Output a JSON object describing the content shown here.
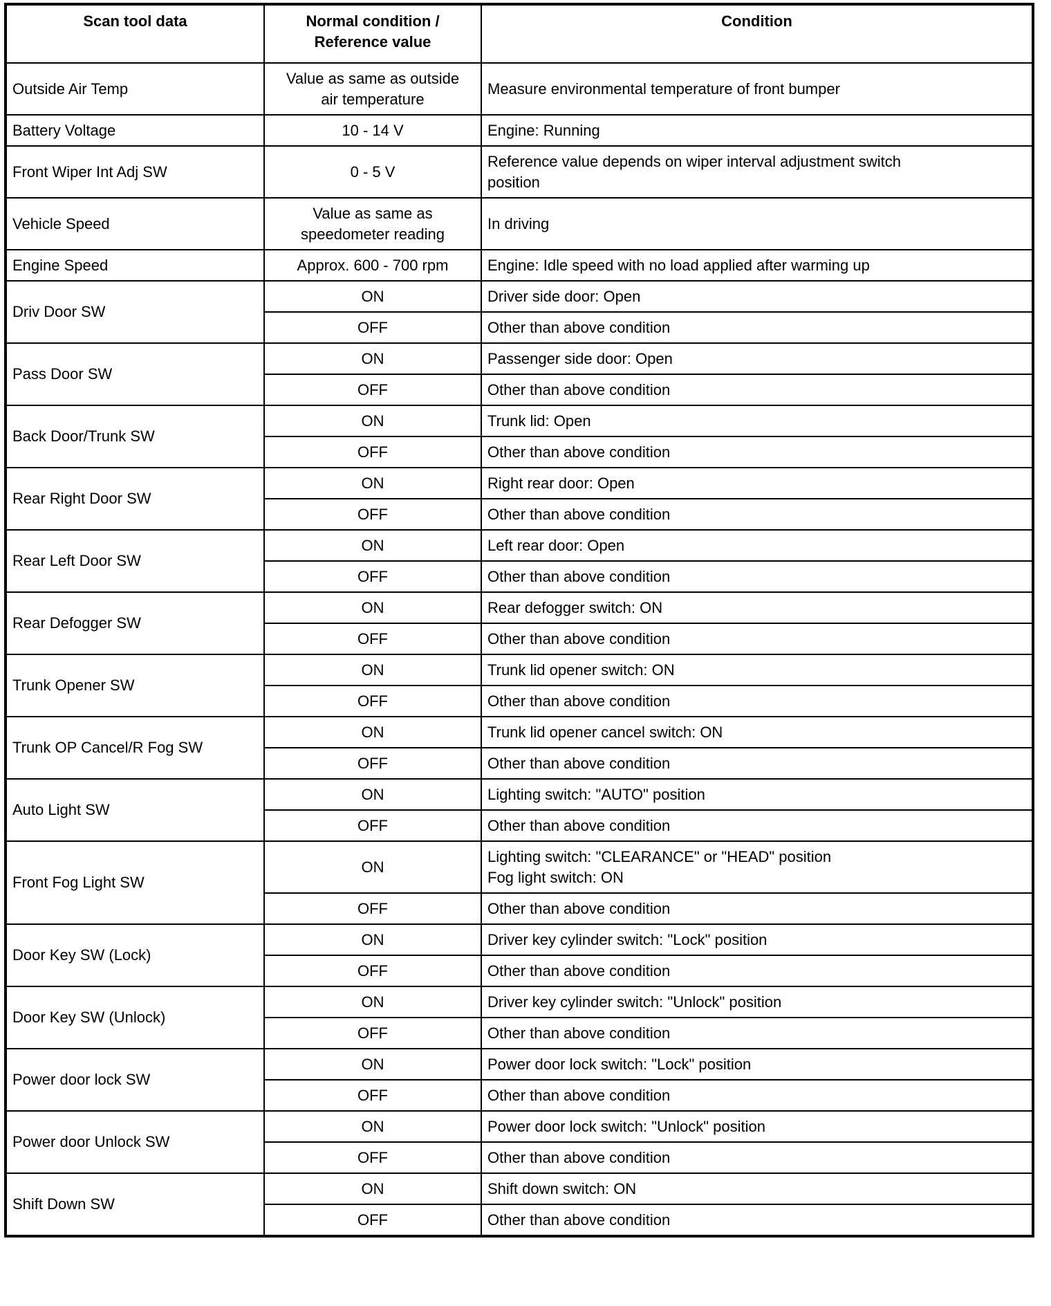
{
  "headers": [
    "Scan tool data",
    "Normal condition /\nReference value",
    "Condition"
  ],
  "single_rows": [
    {
      "item": "Outside Air Temp",
      "value": "Value as same as outside\nair temperature",
      "condition": "Measure environmental temperature of front bumper",
      "tall": true
    },
    {
      "item": "Battery Voltage",
      "value": "10 - 14 V",
      "condition": "Engine: Running",
      "tall": false
    },
    {
      "item": "Front Wiper Int Adj SW",
      "value": "0 - 5 V",
      "condition": "Reference value depends on wiper interval adjustment switch\nposition",
      "tall": true
    },
    {
      "item": "Vehicle Speed",
      "value": "Value as same as\nspeedometer reading",
      "condition": "In driving",
      "tall": true
    },
    {
      "item": "Engine Speed",
      "value": "Approx. 600 - 700 rpm",
      "condition": "Engine: Idle speed with no load applied after warming up",
      "tall": false
    }
  ],
  "switch_rows": [
    {
      "item": "Driv Door SW",
      "on": "ON",
      "on_condition": "Driver side door: Open",
      "off": "OFF",
      "off_condition": "Other than above condition"
    },
    {
      "item": "Pass Door SW",
      "on": "ON",
      "on_condition": "Passenger side door: Open",
      "off": "OFF",
      "off_condition": "Other than above condition"
    },
    {
      "item": "Back Door/Trunk SW",
      "on": "ON",
      "on_condition": "Trunk lid: Open",
      "off": "OFF",
      "off_condition": "Other than above condition"
    },
    {
      "item": "Rear Right Door SW",
      "on": "ON",
      "on_condition": "Right rear door: Open",
      "off": "OFF",
      "off_condition": "Other than above condition"
    },
    {
      "item": "Rear Left Door SW",
      "on": "ON",
      "on_condition": "Left rear door: Open",
      "off": "OFF",
      "off_condition": "Other than above condition"
    },
    {
      "item": "Rear Defogger SW",
      "on": "ON",
      "on_condition": "Rear defogger switch: ON",
      "off": "OFF",
      "off_condition": "Other than above condition"
    },
    {
      "item": "Trunk Opener SW",
      "on": "ON",
      "on_condition": "Trunk lid opener switch: ON",
      "off": "OFF",
      "off_condition": "Other than above condition"
    },
    {
      "item": "Trunk OP Cancel/R Fog SW",
      "on": "ON",
      "on_condition": "Trunk lid opener cancel switch: ON",
      "off": "OFF",
      "off_condition": "Other than above condition"
    },
    {
      "item": "Auto Light SW",
      "on": "ON",
      "on_condition": "Lighting switch: \"AUTO\" position",
      "off": "OFF",
      "off_condition": "Other than above condition"
    },
    {
      "item": "Front Fog Light SW",
      "on": "ON",
      "on_condition": "Lighting switch: \"CLEARANCE\" or \"HEAD\" position\nFog light switch: ON",
      "off": "OFF",
      "off_condition": "Other than above condition",
      "tall": true
    },
    {
      "item": "Door Key SW (Lock)",
      "on": "ON",
      "on_condition": "Driver key cylinder switch: \"Lock\" position",
      "off": "OFF",
      "off_condition": "Other than above condition"
    },
    {
      "item": "Door Key SW (Unlock)",
      "on": "ON",
      "on_condition": "Driver key cylinder switch: \"Unlock\" position",
      "off": "OFF",
      "off_condition": "Other than above condition"
    },
    {
      "item": "Power door lock SW",
      "on": "ON",
      "on_condition": "Power door lock switch: \"Lock\" position",
      "off": "OFF",
      "off_condition": "Other than above condition"
    },
    {
      "item": "Power door Unlock SW",
      "on": "ON",
      "on_condition": "Power door lock switch: \"Unlock\" position",
      "off": "OFF",
      "off_condition": "Other than above condition"
    },
    {
      "item": "Shift Down SW",
      "on": "ON",
      "on_condition": "Shift down switch: ON",
      "off": "OFF",
      "off_condition": "Other than above condition"
    }
  ]
}
